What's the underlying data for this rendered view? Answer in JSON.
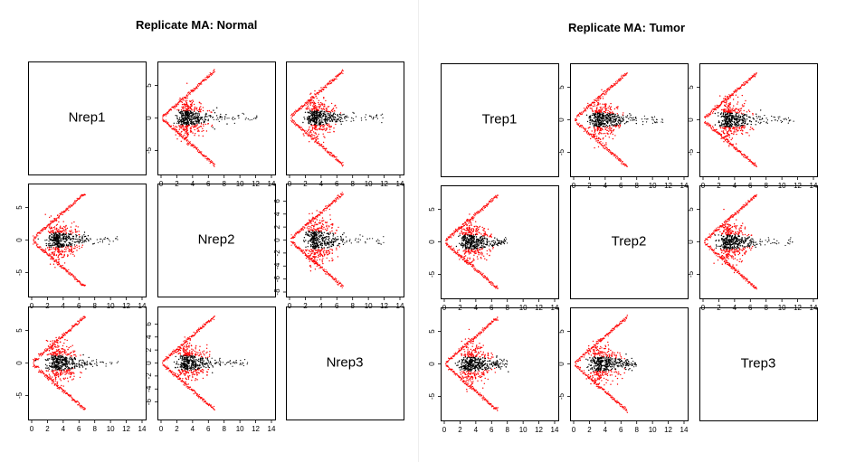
{
  "figure": {
    "panels": [
      {
        "title": "Replicate MA: Normal",
        "labels": [
          "Nrep1",
          "Nrep2",
          "Nrep3"
        ],
        "x_ticks": [
          "0",
          "2",
          "4",
          "6",
          "8",
          "10",
          "12",
          "14"
        ],
        "y_ticks_standard": [
          "-5",
          "0",
          "5"
        ],
        "y_ticks_dense": [
          "-8",
          "-6",
          "-4",
          "-2",
          "0",
          "2",
          "4",
          "6"
        ],
        "y_ticks_r3c2": [
          "-6",
          "-4",
          "-2",
          "0",
          "2",
          "4",
          "6"
        ]
      },
      {
        "title": "Replicate MA: Tumor",
        "labels": [
          "Trep1",
          "Trep2",
          "Trep3"
        ],
        "x_ticks": [
          "0",
          "2",
          "4",
          "6",
          "8",
          "10",
          "12",
          "14"
        ],
        "y_ticks_standard": [
          "-5",
          "0",
          "5"
        ]
      }
    ]
  },
  "chart_data": {
    "type": "scatter",
    "description_type": "MA plot matrix",
    "xlim": [
      0,
      14
    ],
    "ylim": [
      -8,
      8
    ],
    "point_colors": {
      "significant": "#ff0000",
      "other": "#000000"
    },
    "groups": [
      {
        "title": "Replicate MA: Normal",
        "replicates": [
          "Nrep1",
          "Nrep2",
          "Nrep3"
        ],
        "pairs": [
          {
            "row": 1,
            "col": 2,
            "a_center": 3.5,
            "m_spread": 2.0,
            "a_max": 12.5,
            "boundary_a_max": 6.8
          },
          {
            "row": 1,
            "col": 3,
            "a_center": 3.5,
            "m_spread": 2.0,
            "a_max": 12.0,
            "boundary_a_max": 6.8
          },
          {
            "row": 2,
            "col": 1,
            "a_center": 3.5,
            "m_spread": 2.0,
            "a_max": 11.0,
            "boundary_a_max": 6.8
          },
          {
            "row": 2,
            "col": 3,
            "a_center": 3.5,
            "m_spread": 2.5,
            "a_max": 12.0,
            "boundary_a_max": 6.8
          },
          {
            "row": 3,
            "col": 1,
            "a_center": 3.5,
            "m_spread": 2.0,
            "a_max": 11.0,
            "boundary_a_max": 6.8
          },
          {
            "row": 3,
            "col": 2,
            "a_center": 3.5,
            "m_spread": 2.0,
            "a_max": 11.0,
            "boundary_a_max": 6.8
          }
        ]
      },
      {
        "title": "Replicate MA: Tumor",
        "replicates": [
          "Trep1",
          "Trep2",
          "Trep3"
        ],
        "pairs": [
          {
            "row": 1,
            "col": 2,
            "a_center": 3.5,
            "m_spread": 2.0,
            "a_max": 11.5,
            "boundary_a_max": 6.8
          },
          {
            "row": 1,
            "col": 3,
            "a_center": 3.5,
            "m_spread": 2.0,
            "a_max": 11.5,
            "boundary_a_max": 6.8
          },
          {
            "row": 2,
            "col": 1,
            "a_center": 3.5,
            "m_spread": 2.0,
            "a_max": 8.0,
            "boundary_a_max": 6.8
          },
          {
            "row": 2,
            "col": 3,
            "a_center": 3.5,
            "m_spread": 2.0,
            "a_max": 11.5,
            "boundary_a_max": 6.8
          },
          {
            "row": 3,
            "col": 1,
            "a_center": 3.5,
            "m_spread": 2.0,
            "a_max": 8.0,
            "boundary_a_max": 6.8
          },
          {
            "row": 3,
            "col": 2,
            "a_center": 3.5,
            "m_spread": 2.0,
            "a_max": 8.0,
            "boundary_a_max": 6.8
          }
        ]
      }
    ]
  }
}
